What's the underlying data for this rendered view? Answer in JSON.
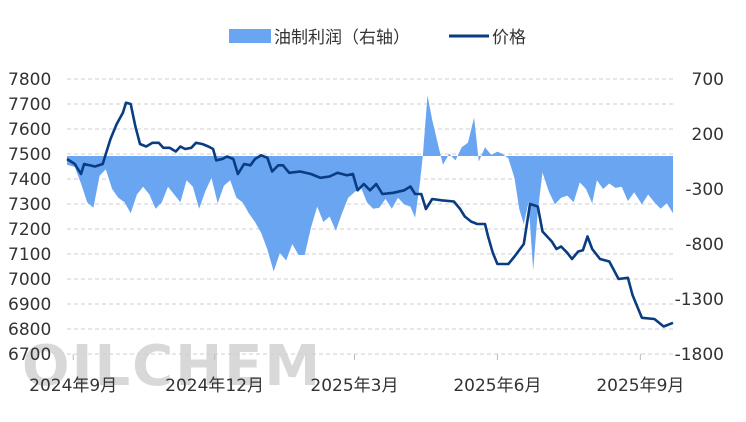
{
  "chart_data": {
    "type": "line+area",
    "legend": {
      "placement": "top-center",
      "items": [
        {
          "name": "油制利润（右轴）",
          "kind": "area",
          "color": "#6aa5f2"
        },
        {
          "name": "价格",
          "kind": "line",
          "color": "#0a3c82"
        }
      ]
    },
    "watermark": "OILCHEM",
    "grid": true,
    "y_left": {
      "min": 6700,
      "max": 7800,
      "ticks": [
        "7800",
        "7700",
        "7600",
        "7500",
        "7400",
        "7300",
        "7200",
        "7100",
        "7000",
        "6900",
        "6800",
        "6700"
      ]
    },
    "y_right": {
      "min": -1800,
      "max": 700,
      "ticks": [
        "700",
        "200",
        "-300",
        "-800",
        "-1300",
        "-1800"
      ]
    },
    "x_axis": {
      "start": "2024-08-28",
      "end": "2025-09-22",
      "tick_labels": [
        "2024年9月",
        "2024年12月",
        "2025年3月",
        "2025年6月",
        "2025年9月"
      ],
      "tick_dates": [
        "2024-09-01",
        "2024-12-01",
        "2025-03-01",
        "2025-06-01",
        "2025-09-01"
      ]
    },
    "series": [
      {
        "name": "价格",
        "axis": "left",
        "points": [
          [
            "2024-08-28",
            7480
          ],
          [
            "2024-09-02",
            7460
          ],
          [
            "2024-09-06",
            7420
          ],
          [
            "2024-09-08",
            7460
          ],
          [
            "2024-09-15",
            7450
          ],
          [
            "2024-09-20",
            7460
          ],
          [
            "2024-09-25",
            7560
          ],
          [
            "2024-09-29",
            7620
          ],
          [
            "2024-10-03",
            7665
          ],
          [
            "2024-10-05",
            7705
          ],
          [
            "2024-10-08",
            7700
          ],
          [
            "2024-10-11",
            7610
          ],
          [
            "2024-10-14",
            7540
          ],
          [
            "2024-10-18",
            7530
          ],
          [
            "2024-10-22",
            7545
          ],
          [
            "2024-10-26",
            7545
          ],
          [
            "2024-10-29",
            7525
          ],
          [
            "2024-11-02",
            7525
          ],
          [
            "2024-11-06",
            7510
          ],
          [
            "2024-11-09",
            7530
          ],
          [
            "2024-11-12",
            7520
          ],
          [
            "2024-11-16",
            7525
          ],
          [
            "2024-11-19",
            7545
          ],
          [
            "2024-11-23",
            7540
          ],
          [
            "2024-11-27",
            7530
          ],
          [
            "2024-11-30",
            7520
          ],
          [
            "2024-12-02",
            7475
          ],
          [
            "2024-12-06",
            7480
          ],
          [
            "2024-12-09",
            7490
          ],
          [
            "2024-12-13",
            7480
          ],
          [
            "2024-12-16",
            7420
          ],
          [
            "2024-12-20",
            7460
          ],
          [
            "2024-12-24",
            7455
          ],
          [
            "2024-12-27",
            7480
          ],
          [
            "2024-12-31",
            7495
          ],
          [
            "2025-01-04",
            7485
          ],
          [
            "2025-01-07",
            7430
          ],
          [
            "2025-01-11",
            7455
          ],
          [
            "2025-01-14",
            7455
          ],
          [
            "2025-01-18",
            7425
          ],
          [
            "2025-01-25",
            7430
          ],
          [
            "2025-02-01",
            7420
          ],
          [
            "2025-02-07",
            7405
          ],
          [
            "2025-02-13",
            7410
          ],
          [
            "2025-02-18",
            7425
          ],
          [
            "2025-02-24",
            7415
          ],
          [
            "2025-02-28",
            7420
          ],
          [
            "2025-03-03",
            7355
          ],
          [
            "2025-03-07",
            7380
          ],
          [
            "2025-03-11",
            7355
          ],
          [
            "2025-03-15",
            7380
          ],
          [
            "2025-03-19",
            7340
          ],
          [
            "2025-03-26",
            7345
          ],
          [
            "2025-04-02",
            7355
          ],
          [
            "2025-04-06",
            7370
          ],
          [
            "2025-04-09",
            7340
          ],
          [
            "2025-04-13",
            7340
          ],
          [
            "2025-04-16",
            7280
          ],
          [
            "2025-04-20",
            7320
          ],
          [
            "2025-04-26",
            7315
          ],
          [
            "2025-05-04",
            7310
          ],
          [
            "2025-05-08",
            7280
          ],
          [
            "2025-05-11",
            7250
          ],
          [
            "2025-05-15",
            7230
          ],
          [
            "2025-05-19",
            7220
          ],
          [
            "2025-05-24",
            7220
          ],
          [
            "2025-05-26",
            7170
          ],
          [
            "2025-05-29",
            7105
          ],
          [
            "2025-06-01",
            7060
          ],
          [
            "2025-06-08",
            7060
          ],
          [
            "2025-06-12",
            7090
          ],
          [
            "2025-06-18",
            7140
          ],
          [
            "2025-06-22",
            7300
          ],
          [
            "2025-06-27",
            7290
          ],
          [
            "2025-06-30",
            7190
          ],
          [
            "2025-07-06",
            7150
          ],
          [
            "2025-07-09",
            7120
          ],
          [
            "2025-07-12",
            7130
          ],
          [
            "2025-07-16",
            7105
          ],
          [
            "2025-07-19",
            7080
          ],
          [
            "2025-07-23",
            7110
          ],
          [
            "2025-07-26",
            7115
          ],
          [
            "2025-07-29",
            7170
          ],
          [
            "2025-08-01",
            7120
          ],
          [
            "2025-08-06",
            7080
          ],
          [
            "2025-08-12",
            7070
          ],
          [
            "2025-08-18",
            7000
          ],
          [
            "2025-08-24",
            7005
          ],
          [
            "2025-08-27",
            6935
          ],
          [
            "2025-09-02",
            6845
          ],
          [
            "2025-09-10",
            6840
          ],
          [
            "2025-09-16",
            6810
          ],
          [
            "2025-09-22",
            6825
          ]
        ]
      },
      {
        "name": "油制利润（右轴）",
        "axis": "right",
        "points": [
          [
            "2024-08-28",
            -80
          ],
          [
            "2024-09-02",
            -100
          ],
          [
            "2024-09-06",
            -250
          ],
          [
            "2024-09-10",
            -420
          ],
          [
            "2024-09-14",
            -470
          ],
          [
            "2024-09-18",
            -180
          ],
          [
            "2024-09-22",
            -120
          ],
          [
            "2024-09-26",
            -300
          ],
          [
            "2024-09-30",
            -380
          ],
          [
            "2024-10-04",
            -420
          ],
          [
            "2024-10-08",
            -520
          ],
          [
            "2024-10-12",
            -350
          ],
          [
            "2024-10-16",
            -280
          ],
          [
            "2024-10-20",
            -350
          ],
          [
            "2024-10-24",
            -480
          ],
          [
            "2024-10-28",
            -420
          ],
          [
            "2024-11-01",
            -280
          ],
          [
            "2024-11-05",
            -350
          ],
          [
            "2024-11-09",
            -420
          ],
          [
            "2024-11-13",
            -220
          ],
          [
            "2024-11-17",
            -280
          ],
          [
            "2024-11-21",
            -480
          ],
          [
            "2024-11-25",
            -320
          ],
          [
            "2024-11-29",
            -200
          ],
          [
            "2024-12-03",
            -430
          ],
          [
            "2024-12-07",
            -270
          ],
          [
            "2024-12-11",
            -220
          ],
          [
            "2024-12-15",
            -380
          ],
          [
            "2024-12-19",
            -420
          ],
          [
            "2024-12-23",
            -520
          ],
          [
            "2024-12-27",
            -600
          ],
          [
            "2024-12-31",
            -700
          ],
          [
            "2025-01-04",
            -850
          ],
          [
            "2025-01-08",
            -1050
          ],
          [
            "2025-01-12",
            -880
          ],
          [
            "2025-01-16",
            -950
          ],
          [
            "2025-01-20",
            -800
          ],
          [
            "2025-01-24",
            -900
          ],
          [
            "2025-01-28",
            -900
          ],
          [
            "2025-02-01",
            -650
          ],
          [
            "2025-02-05",
            -460
          ],
          [
            "2025-02-09",
            -600
          ],
          [
            "2025-02-13",
            -550
          ],
          [
            "2025-02-17",
            -680
          ],
          [
            "2025-02-21",
            -520
          ],
          [
            "2025-02-25",
            -380
          ],
          [
            "2025-03-01",
            -330
          ],
          [
            "2025-03-05",
            -280
          ],
          [
            "2025-03-09",
            -420
          ],
          [
            "2025-03-13",
            -480
          ],
          [
            "2025-03-17",
            -470
          ],
          [
            "2025-03-21",
            -390
          ],
          [
            "2025-03-25",
            -480
          ],
          [
            "2025-03-29",
            -380
          ],
          [
            "2025-04-02",
            -440
          ],
          [
            "2025-04-06",
            -460
          ],
          [
            "2025-04-09",
            -560
          ],
          [
            "2025-04-12",
            -260
          ],
          [
            "2025-04-14",
            0
          ],
          [
            "2025-04-17",
            550
          ],
          [
            "2025-04-20",
            330
          ],
          [
            "2025-04-24",
            90
          ],
          [
            "2025-04-27",
            -80
          ],
          [
            "2025-05-01",
            20
          ],
          [
            "2025-05-05",
            -40
          ],
          [
            "2025-05-09",
            80
          ],
          [
            "2025-05-13",
            120
          ],
          [
            "2025-05-17",
            350
          ],
          [
            "2025-05-20",
            -50
          ],
          [
            "2025-05-24",
            80
          ],
          [
            "2025-05-28",
            10
          ],
          [
            "2025-06-01",
            40
          ],
          [
            "2025-06-04",
            20
          ],
          [
            "2025-06-08",
            -20
          ],
          [
            "2025-06-12",
            -200
          ],
          [
            "2025-06-15",
            -480
          ],
          [
            "2025-06-18",
            -620
          ],
          [
            "2025-06-21",
            -420
          ],
          [
            "2025-06-24",
            -1040
          ],
          [
            "2025-06-27",
            -500
          ],
          [
            "2025-06-30",
            -150
          ],
          [
            "2025-07-04",
            -320
          ],
          [
            "2025-07-08",
            -440
          ],
          [
            "2025-07-12",
            -380
          ],
          [
            "2025-07-16",
            -360
          ],
          [
            "2025-07-20",
            -420
          ],
          [
            "2025-07-24",
            -240
          ],
          [
            "2025-07-28",
            -300
          ],
          [
            "2025-08-01",
            -430
          ],
          [
            "2025-08-04",
            -220
          ],
          [
            "2025-08-08",
            -300
          ],
          [
            "2025-08-12",
            -250
          ],
          [
            "2025-08-16",
            -290
          ],
          [
            "2025-08-20",
            -280
          ],
          [
            "2025-08-24",
            -410
          ],
          [
            "2025-08-28",
            -330
          ],
          [
            "2025-09-02",
            -440
          ],
          [
            "2025-09-06",
            -350
          ],
          [
            "2025-09-10",
            -420
          ],
          [
            "2025-09-14",
            -480
          ],
          [
            "2025-09-18",
            -430
          ],
          [
            "2025-09-22",
            -520
          ]
        ]
      }
    ]
  }
}
